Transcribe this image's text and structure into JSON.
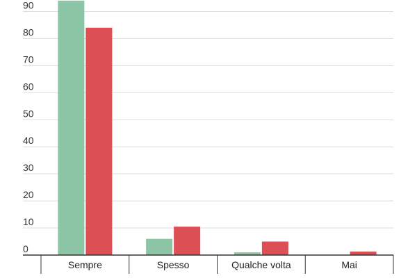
{
  "chart_data": {
    "type": "bar",
    "categories": [
      "Sempre",
      "Spesso",
      "Qualche volta",
      "Mai"
    ],
    "series": [
      {
        "color": "#8cc5a5",
        "values": [
          94,
          6,
          1,
          0
        ]
      },
      {
        "color": "#dc4f55",
        "values": [
          84,
          10.5,
          5,
          1.3
        ]
      }
    ],
    "yticks": [
      0,
      10,
      20,
      30,
      40,
      50,
      60,
      70,
      80,
      90
    ],
    "ylim": [
      0,
      94
    ],
    "grid": true,
    "legend": "none",
    "colors": {
      "grid": "#dddddd",
      "axis": "#333333",
      "text": "#333333"
    }
  }
}
